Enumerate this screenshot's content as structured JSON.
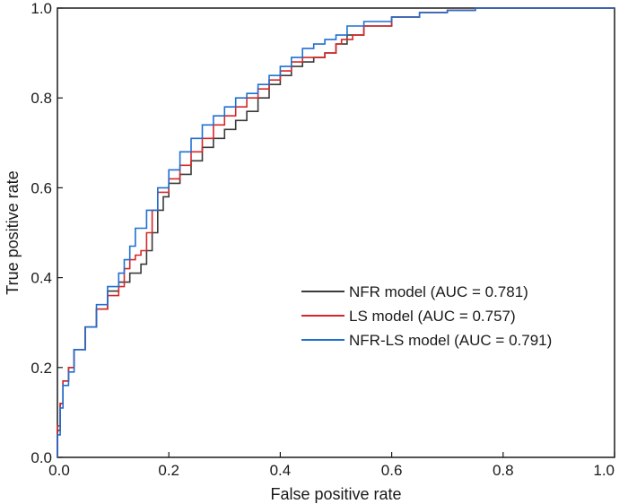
{
  "chart_data": {
    "type": "line",
    "title": "",
    "xlabel": "False positive rate",
    "ylabel": "True positive rate",
    "xlim": [
      0,
      1
    ],
    "ylim": [
      0,
      1
    ],
    "xticks": [
      0.0,
      0.2,
      0.4,
      0.6,
      0.8,
      1.0
    ],
    "yticks": [
      0.0,
      0.2,
      0.4,
      0.6,
      0.8,
      1.0
    ],
    "xtick_labels": [
      "0.0",
      "0.2",
      "0.4",
      "0.6",
      "0.8",
      "1.0"
    ],
    "ytick_labels": [
      "0.0",
      "0.2",
      "0.4",
      "0.6",
      "0.8",
      "1.0"
    ],
    "grid": false,
    "legend_position": "lower-right",
    "series": [
      {
        "name": "NFR model (AUC = 0.781)",
        "color": "#3a3a3a",
        "x": [
          0.0,
          0.005,
          0.01,
          0.02,
          0.03,
          0.05,
          0.07,
          0.09,
          0.11,
          0.13,
          0.15,
          0.16,
          0.17,
          0.18,
          0.19,
          0.2,
          0.22,
          0.24,
          0.26,
          0.28,
          0.3,
          0.32,
          0.34,
          0.36,
          0.38,
          0.4,
          0.42,
          0.44,
          0.46,
          0.48,
          0.5,
          0.52,
          0.55,
          0.6,
          0.65,
          0.7,
          0.75,
          0.8,
          0.85,
          0.9,
          0.95,
          1.0
        ],
        "y": [
          0.0,
          0.06,
          0.12,
          0.17,
          0.2,
          0.24,
          0.29,
          0.33,
          0.37,
          0.39,
          0.41,
          0.43,
          0.46,
          0.5,
          0.55,
          0.58,
          0.61,
          0.63,
          0.66,
          0.69,
          0.71,
          0.73,
          0.75,
          0.77,
          0.8,
          0.83,
          0.85,
          0.87,
          0.88,
          0.89,
          0.9,
          0.92,
          0.94,
          0.96,
          0.98,
          0.99,
          0.995,
          1.0,
          1.0,
          1.0,
          1.0,
          1.0
        ]
      },
      {
        "name": "LS model (AUC = 0.757)",
        "color": "#d62728",
        "x": [
          0.0,
          0.005,
          0.01,
          0.02,
          0.03,
          0.05,
          0.07,
          0.09,
          0.11,
          0.12,
          0.13,
          0.14,
          0.15,
          0.16,
          0.17,
          0.18,
          0.2,
          0.22,
          0.24,
          0.26,
          0.28,
          0.3,
          0.32,
          0.34,
          0.36,
          0.38,
          0.4,
          0.42,
          0.44,
          0.46,
          0.48,
          0.5,
          0.51,
          0.53,
          0.55,
          0.6,
          0.65,
          0.7,
          0.75,
          0.8,
          0.9,
          1.0
        ],
        "y": [
          0.0,
          0.07,
          0.12,
          0.17,
          0.2,
          0.24,
          0.29,
          0.33,
          0.36,
          0.38,
          0.42,
          0.44,
          0.45,
          0.46,
          0.5,
          0.55,
          0.59,
          0.62,
          0.65,
          0.68,
          0.71,
          0.74,
          0.76,
          0.78,
          0.8,
          0.82,
          0.84,
          0.86,
          0.88,
          0.89,
          0.89,
          0.9,
          0.92,
          0.93,
          0.94,
          0.96,
          0.98,
          0.99,
          0.995,
          1.0,
          1.0,
          1.0
        ]
      },
      {
        "name": "NFR-LS model (AUC = 0.791)",
        "color": "#1f6fd1",
        "x": [
          0.0,
          0.005,
          0.01,
          0.02,
          0.03,
          0.05,
          0.07,
          0.09,
          0.11,
          0.12,
          0.13,
          0.14,
          0.16,
          0.18,
          0.2,
          0.22,
          0.24,
          0.26,
          0.28,
          0.3,
          0.32,
          0.34,
          0.36,
          0.38,
          0.4,
          0.42,
          0.44,
          0.46,
          0.48,
          0.5,
          0.52,
          0.55,
          0.6,
          0.65,
          0.7,
          0.75,
          0.8,
          0.85,
          0.9,
          0.95,
          1.0
        ],
        "y": [
          0.0,
          0.05,
          0.11,
          0.16,
          0.19,
          0.24,
          0.29,
          0.34,
          0.38,
          0.41,
          0.44,
          0.47,
          0.51,
          0.55,
          0.6,
          0.64,
          0.68,
          0.71,
          0.74,
          0.76,
          0.78,
          0.8,
          0.81,
          0.83,
          0.85,
          0.87,
          0.89,
          0.91,
          0.92,
          0.93,
          0.94,
          0.96,
          0.97,
          0.98,
          0.99,
          0.995,
          1.0,
          1.0,
          1.0,
          1.0,
          1.0
        ]
      }
    ]
  }
}
